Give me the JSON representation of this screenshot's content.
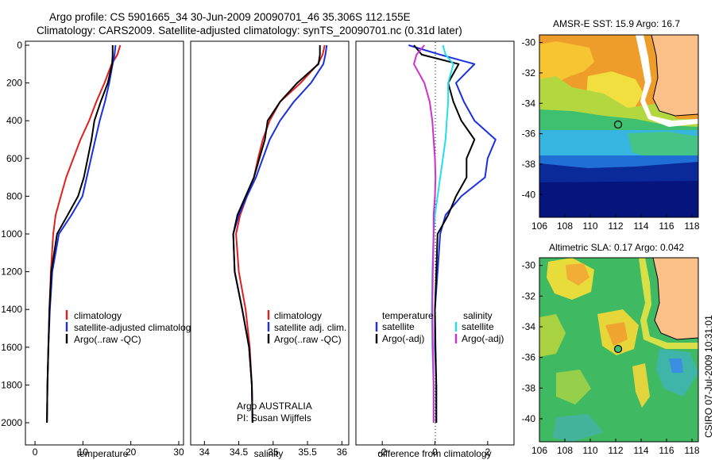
{
  "header": {
    "line1": "Argo profile: CS 5901665_34 30-Jun-2009 20090701_46 35.306S 112.155E",
    "line2": "Climatology: CARS2009. Satellite-adjusted climatology: synTS_20090701.nc (0.31d later)"
  },
  "colors": {
    "climatology": "#e02020",
    "satellite": "#1a2fe0",
    "argo": "#000000",
    "sal_sat": "#22e0e6",
    "sal_argo": "#d030d0"
  },
  "depth_ticks": [
    "0",
    "200",
    "400",
    "600",
    "800",
    "1000",
    "1200",
    "1400",
    "1600",
    "1800",
    "2000"
  ],
  "chart_data": [
    {
      "type": "line",
      "name": "temperature",
      "xlabel": "temperature",
      "ylabel": "",
      "xlim": [
        -2,
        31
      ],
      "ylim": [
        2050,
        0
      ],
      "xticks": [
        "0",
        "10",
        "20",
        "30"
      ],
      "series": [
        {
          "name": "climatology",
          "color": "climatology",
          "x": [
            17.8,
            17.2,
            16.0,
            14.5,
            12.8,
            11.3,
            9.5,
            8.0,
            6.5,
            5.4,
            4.3,
            3.8,
            3.3,
            3.0,
            2.8,
            2.6,
            2.5
          ],
          "y": [
            0,
            50,
            100,
            200,
            300,
            400,
            500,
            600,
            700,
            800,
            900,
            1000,
            1200,
            1400,
            1600,
            1800,
            2000
          ]
        },
        {
          "name": "satellite-adjusted climatology",
          "color": "satellite",
          "x": [
            16.8,
            16.6,
            16.2,
            15.5,
            14.6,
            13.5,
            12.6,
            11.7,
            10.8,
            9.9,
            7.6,
            5.0,
            3.6,
            3.1,
            2.8,
            2.6,
            2.5
          ],
          "y": [
            0,
            50,
            100,
            200,
            300,
            400,
            500,
            600,
            700,
            800,
            900,
            1000,
            1200,
            1400,
            1600,
            1800,
            2000
          ]
        },
        {
          "name": "Argo(..raw -QC)",
          "color": "argo",
          "x": [
            16.2,
            16.2,
            16.1,
            15.2,
            13.7,
            12.4,
            11.8,
            11.0,
            10.2,
            9.0,
            6.8,
            4.6,
            3.4,
            3.0,
            2.8,
            2.6,
            2.5
          ],
          "y": [
            0,
            50,
            100,
            200,
            300,
            400,
            500,
            600,
            700,
            800,
            900,
            1000,
            1200,
            1400,
            1600,
            1800,
            2000
          ]
        }
      ],
      "legend": [
        "climatology",
        "satellite-adjusted climatology",
        "Argo(..raw -QC)"
      ]
    },
    {
      "type": "line",
      "name": "salinity",
      "xlabel": "salinity",
      "ylabel": "",
      "xlim": [
        33.8,
        36.1
      ],
      "ylim": [
        2050,
        0
      ],
      "xticks": [
        "34",
        "34.5",
        "35",
        "35.5",
        "36"
      ],
      "series": [
        {
          "name": "climatology",
          "color": "climatology",
          "x": [
            35.75,
            35.72,
            35.65,
            35.4,
            35.1,
            34.95,
            34.85,
            34.78,
            34.72,
            34.62,
            34.52,
            34.46,
            34.5,
            34.6,
            34.66,
            34.69,
            34.7
          ],
          "y": [
            0,
            50,
            100,
            200,
            300,
            400,
            500,
            600,
            700,
            800,
            900,
            1000,
            1200,
            1400,
            1600,
            1800,
            2000
          ]
        },
        {
          "name": "satellite adj. clim.",
          "color": "satellite",
          "x": [
            35.78,
            35.76,
            35.73,
            35.55,
            35.3,
            35.1,
            34.95,
            34.85,
            34.75,
            34.62,
            34.5,
            34.42,
            34.44,
            34.55,
            34.65,
            34.69,
            34.7
          ],
          "y": [
            0,
            50,
            100,
            200,
            300,
            400,
            500,
            600,
            700,
            800,
            900,
            1000,
            1200,
            1400,
            1600,
            1800,
            2000
          ]
        },
        {
          "name": "Argo(..raw -QC)",
          "color": "argo",
          "x": [
            35.68,
            35.68,
            35.66,
            35.35,
            35.1,
            34.92,
            34.88,
            34.8,
            34.72,
            34.6,
            34.48,
            34.42,
            34.44,
            34.55,
            34.65,
            34.69,
            34.7
          ],
          "y": [
            0,
            50,
            100,
            200,
            300,
            400,
            500,
            600,
            700,
            800,
            900,
            1000,
            1200,
            1400,
            1600,
            1800,
            2000
          ]
        }
      ],
      "legend": [
        "climatology",
        "satellite adj. clim.",
        "Argo(..raw -QC)"
      ],
      "annotation": [
        "Argo AUSTRALIA",
        "PI: Susan Wijffels"
      ]
    },
    {
      "type": "line",
      "name": "difference",
      "xlabel": "difference from climatology",
      "ylabel": "",
      "xlim": [
        -3,
        3
      ],
      "ylim": [
        2050,
        0
      ],
      "xticks": [
        "-2",
        "0",
        "2"
      ],
      "series": [
        {
          "name": "temperature satellite",
          "color": "satellite",
          "x": [
            -1.0,
            0.2,
            1.5,
            0.8,
            1.1,
            1.5,
            2.3,
            2.0,
            1.9,
            1.0,
            0.4,
            0.2,
            0.1,
            0.0,
            0.0,
            0.05,
            0.05
          ],
          "y": [
            0,
            50,
            100,
            200,
            300,
            400,
            500,
            600,
            700,
            800,
            900,
            1000,
            1200,
            1400,
            1600,
            1800,
            2000
          ]
        },
        {
          "name": "temperature Argo(-adj)",
          "color": "argo",
          "x": [
            -0.8,
            -0.5,
            0.9,
            0.5,
            0.7,
            1.0,
            1.5,
            1.2,
            1.2,
            0.8,
            0.5,
            0.1,
            0.05,
            0.0,
            0.02,
            0.05,
            0.05
          ],
          "y": [
            0,
            50,
            100,
            200,
            300,
            400,
            500,
            600,
            700,
            800,
            900,
            1000,
            1200,
            1400,
            1600,
            1800,
            2000
          ]
        },
        {
          "name": "salinity satellite",
          "color": "sal_sat",
          "x": [
            0.3,
            0.4,
            0.7,
            0.5,
            0.5,
            0.45,
            0.4,
            0.3,
            0.2,
            0.1,
            0.0,
            -0.05,
            -0.1,
            -0.12,
            -0.1,
            -0.05,
            -0.05
          ],
          "y": [
            0,
            50,
            100,
            200,
            300,
            400,
            500,
            600,
            700,
            800,
            900,
            1000,
            1200,
            1400,
            1600,
            1800,
            2000
          ]
        },
        {
          "name": "salinity Argo(-adj)",
          "color": "sal_argo",
          "x": [
            -0.4,
            -0.7,
            -0.8,
            -0.4,
            -0.2,
            -0.1,
            -0.05,
            0.0,
            0.02,
            0.0,
            -0.05,
            -0.05,
            -0.08,
            -0.1,
            -0.08,
            -0.05,
            -0.05
          ],
          "y": [
            0,
            50,
            100,
            200,
            300,
            400,
            500,
            600,
            700,
            800,
            900,
            1000,
            1200,
            1400,
            1600,
            1800,
            2000
          ]
        }
      ],
      "legend_headers": [
        "temperature",
        "salinity"
      ],
      "legend_left": [
        "satellite",
        "Argo(-adj)"
      ],
      "legend_right": [
        "satellite",
        "Argo(-adj)"
      ]
    },
    {
      "type": "heatmap",
      "name": "sst-map",
      "title": "AMSR-E SST: 15.9 Argo: 16.7",
      "xlim": [
        106,
        118.5
      ],
      "ylim": [
        -41.5,
        -29.5
      ],
      "xticks": [
        "106",
        "108",
        "110",
        "112",
        "114",
        "116",
        "118"
      ],
      "yticks": [
        "-30",
        "-32",
        "-34",
        "-36",
        "-38",
        "-40"
      ],
      "marker": {
        "lon": 112.155,
        "lat": -35.306
      }
    },
    {
      "type": "heatmap",
      "name": "sla-map",
      "title": "Altimetric SLA: 0.17 Argo: 0.042",
      "xlim": [
        106,
        118.5
      ],
      "ylim": [
        -41.5,
        -29.5
      ],
      "xticks": [
        "106",
        "108",
        "110",
        "112",
        "114",
        "116",
        "118"
      ],
      "yticks": [
        "-30",
        "-32",
        "-34",
        "-36",
        "-38",
        "-40"
      ],
      "marker": {
        "lon": 112.155,
        "lat": -35.306
      }
    }
  ],
  "stamp": "CSIRO 07-Jul-2009 10:31:01"
}
